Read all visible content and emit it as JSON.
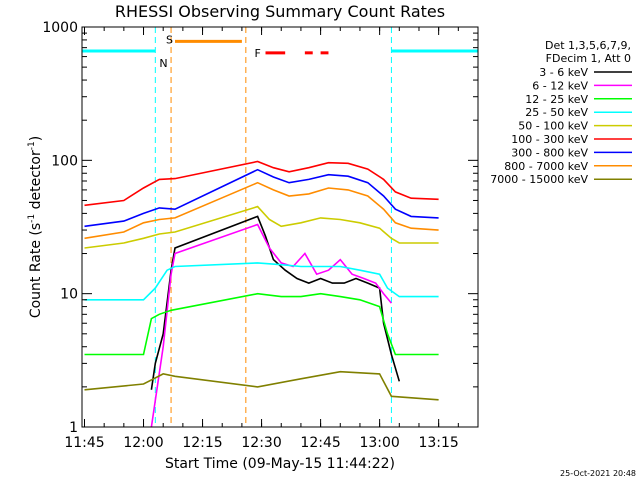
{
  "chart_data": {
    "type": "line",
    "title": "RHESSI Observing Summary Count Rates",
    "xlabel": "Start Time (09-May-15 11:44:22)",
    "ylabel_main": "Count Rate (s",
    "ylabel_sup1": "-1",
    "ylabel_mid": " detector",
    "ylabel_sup2": "-1",
    "ylabel_end": ")",
    "y_scale": "log",
    "ylim": [
      1,
      1000
    ],
    "xlim": [
      "11:44:22",
      "13:25:00"
    ],
    "x_ticks": [
      "11:45",
      "12:00",
      "12:15",
      "12:30",
      "12:45",
      "13:00",
      "13:15"
    ],
    "y_ticks": [
      "1",
      "10",
      "100",
      "1000"
    ],
    "legend_header": [
      "Det 1,3,5,6,7,9,",
      "FDecim 1, Att 0"
    ],
    "legend_position": "right",
    "series": [
      {
        "name": "3 - 6 keV",
        "color": "#000000",
        "points": [
          [
            "12:02",
            1.9
          ],
          [
            "12:03",
            3
          ],
          [
            "12:05",
            5
          ],
          [
            "12:07",
            15
          ],
          [
            "12:08",
            22
          ],
          [
            "12:29",
            38
          ],
          [
            "12:31",
            27
          ],
          [
            "12:33",
            18
          ],
          [
            "12:36",
            15
          ],
          [
            "12:39",
            13
          ],
          [
            "12:42",
            12
          ],
          [
            "12:45",
            13
          ],
          [
            "12:48",
            12
          ],
          [
            "12:51",
            12
          ],
          [
            "12:54",
            13
          ],
          [
            "12:57",
            12
          ],
          [
            "13:00",
            11
          ],
          [
            "13:01",
            6
          ],
          [
            "13:03",
            3.5
          ],
          [
            "13:05",
            2.2
          ]
        ]
      },
      {
        "name": "6 - 12 keV",
        "color": "#ff00ff",
        "points": [
          [
            "12:02",
            1
          ],
          [
            "12:05",
            4
          ],
          [
            "12:07",
            14
          ],
          [
            "12:08",
            20
          ],
          [
            "12:29",
            33
          ],
          [
            "12:32",
            22
          ],
          [
            "12:35",
            17
          ],
          [
            "12:38",
            16
          ],
          [
            "12:41",
            20
          ],
          [
            "12:44",
            14
          ],
          [
            "12:47",
            15
          ],
          [
            "12:50",
            18
          ],
          [
            "12:53",
            14
          ],
          [
            "12:56",
            13
          ],
          [
            "12:59",
            12
          ],
          [
            "13:01",
            10
          ],
          [
            "13:03",
            8.5
          ]
        ]
      },
      {
        "name": "12 - 25 keV",
        "color": "#00ff00",
        "points": [
          [
            "11:45",
            3.5
          ],
          [
            "12:00",
            3.5
          ],
          [
            "12:02",
            6.5
          ],
          [
            "12:04",
            7
          ],
          [
            "12:07",
            7.5
          ],
          [
            "12:29",
            10
          ],
          [
            "12:35",
            9.5
          ],
          [
            "12:40",
            9.5
          ],
          [
            "12:45",
            10
          ],
          [
            "12:50",
            9.5
          ],
          [
            "12:55",
            9
          ],
          [
            "13:00",
            8
          ],
          [
            "13:02",
            5
          ],
          [
            "13:04",
            3.5
          ],
          [
            "13:15",
            3.5
          ]
        ]
      },
      {
        "name": "25 - 50 keV",
        "color": "#00ffff",
        "points": [
          [
            "11:45",
            9
          ],
          [
            "11:55",
            9
          ],
          [
            "12:00",
            9
          ],
          [
            "12:03",
            11
          ],
          [
            "12:06",
            15
          ],
          [
            "12:08",
            16
          ],
          [
            "12:29",
            17
          ],
          [
            "12:35",
            16.5
          ],
          [
            "12:40",
            16
          ],
          [
            "12:45",
            16
          ],
          [
            "12:50",
            16
          ],
          [
            "12:55",
            15
          ],
          [
            "13:00",
            14
          ],
          [
            "13:02",
            11
          ],
          [
            "13:05",
            9.5
          ],
          [
            "13:15",
            9.5
          ]
        ]
      },
      {
        "name": "50 - 100 keV",
        "color": "#cccc00",
        "points": [
          [
            "11:45",
            22
          ],
          [
            "11:55",
            24
          ],
          [
            "12:00",
            26
          ],
          [
            "12:04",
            28
          ],
          [
            "12:08",
            29
          ],
          [
            "12:29",
            45
          ],
          [
            "12:32",
            36
          ],
          [
            "12:35",
            32
          ],
          [
            "12:40",
            34
          ],
          [
            "12:45",
            37
          ],
          [
            "12:50",
            36
          ],
          [
            "12:55",
            34
          ],
          [
            "13:00",
            31
          ],
          [
            "13:03",
            26
          ],
          [
            "13:05",
            24
          ],
          [
            "13:15",
            24
          ]
        ]
      },
      {
        "name": "100 - 300 keV",
        "color": "#ff0000",
        "points": [
          [
            "11:45",
            46
          ],
          [
            "11:55",
            50
          ],
          [
            "12:00",
            62
          ],
          [
            "12:04",
            72
          ],
          [
            "12:08",
            73
          ],
          [
            "12:29",
            98
          ],
          [
            "12:33",
            88
          ],
          [
            "12:37",
            82
          ],
          [
            "12:42",
            88
          ],
          [
            "12:47",
            96
          ],
          [
            "12:52",
            95
          ],
          [
            "12:57",
            86
          ],
          [
            "13:01",
            72
          ],
          [
            "13:04",
            58
          ],
          [
            "13:08",
            52
          ],
          [
            "13:15",
            51
          ]
        ]
      },
      {
        "name": "300 - 800 keV",
        "color": "#0000ff",
        "points": [
          [
            "11:45",
            32
          ],
          [
            "11:55",
            35
          ],
          [
            "12:00",
            40
          ],
          [
            "12:04",
            44
          ],
          [
            "12:08",
            43
          ],
          [
            "12:29",
            85
          ],
          [
            "12:33",
            75
          ],
          [
            "12:37",
            68
          ],
          [
            "12:42",
            72
          ],
          [
            "12:47",
            78
          ],
          [
            "12:52",
            76
          ],
          [
            "12:57",
            68
          ],
          [
            "13:01",
            54
          ],
          [
            "13:04",
            43
          ],
          [
            "13:08",
            38
          ],
          [
            "13:15",
            37
          ]
        ]
      },
      {
        "name": "800 - 7000 keV",
        "color": "#ff8c00",
        "points": [
          [
            "11:45",
            26
          ],
          [
            "11:55",
            29
          ],
          [
            "12:00",
            34
          ],
          [
            "12:04",
            36
          ],
          [
            "12:08",
            37
          ],
          [
            "12:29",
            68
          ],
          [
            "12:33",
            60
          ],
          [
            "12:37",
            54
          ],
          [
            "12:42",
            56
          ],
          [
            "12:47",
            62
          ],
          [
            "12:52",
            60
          ],
          [
            "12:57",
            54
          ],
          [
            "13:01",
            43
          ],
          [
            "13:04",
            34
          ],
          [
            "13:08",
            31
          ],
          [
            "13:15",
            30
          ]
        ]
      },
      {
        "name": "7000 - 15000 keV",
        "color": "#808000",
        "points": [
          [
            "11:45",
            1.9
          ],
          [
            "12:00",
            2.1
          ],
          [
            "12:05",
            2.5
          ],
          [
            "12:08",
            2.4
          ],
          [
            "12:29",
            2
          ],
          [
            "12:40",
            2.3
          ],
          [
            "12:50",
            2.6
          ],
          [
            "13:00",
            2.5
          ],
          [
            "13:03",
            1.7
          ],
          [
            "13:15",
            1.6
          ]
        ]
      }
    ],
    "intervals": [
      {
        "kind": "attenuator",
        "label": "S",
        "color": "#ff8c00",
        "x": [
          "12:08",
          "12:25"
        ],
        "level": 780
      },
      {
        "kind": "flare",
        "label": "F",
        "color": "#ff0000",
        "segments": [
          [
            "12:31",
            "12:36"
          ],
          [
            "12:41",
            "12:43"
          ],
          [
            "12:45",
            "12:47"
          ]
        ],
        "level": 640
      },
      {
        "kind": "night",
        "label": "N",
        "color": "#00ffff",
        "segments": [
          [
            "11:44:22",
            "12:03"
          ],
          [
            "13:03",
            "13:25"
          ]
        ],
        "level": 660
      }
    ],
    "markers": [
      {
        "kind": "saa",
        "color": "#00ffff",
        "x": [
          "12:03",
          "13:03"
        ]
      },
      {
        "kind": "gap",
        "color": "#ff8c00",
        "x": [
          "12:07",
          "12:26"
        ]
      }
    ]
  },
  "footer": {
    "timestamp": "25-Oct-2021 20:48"
  }
}
